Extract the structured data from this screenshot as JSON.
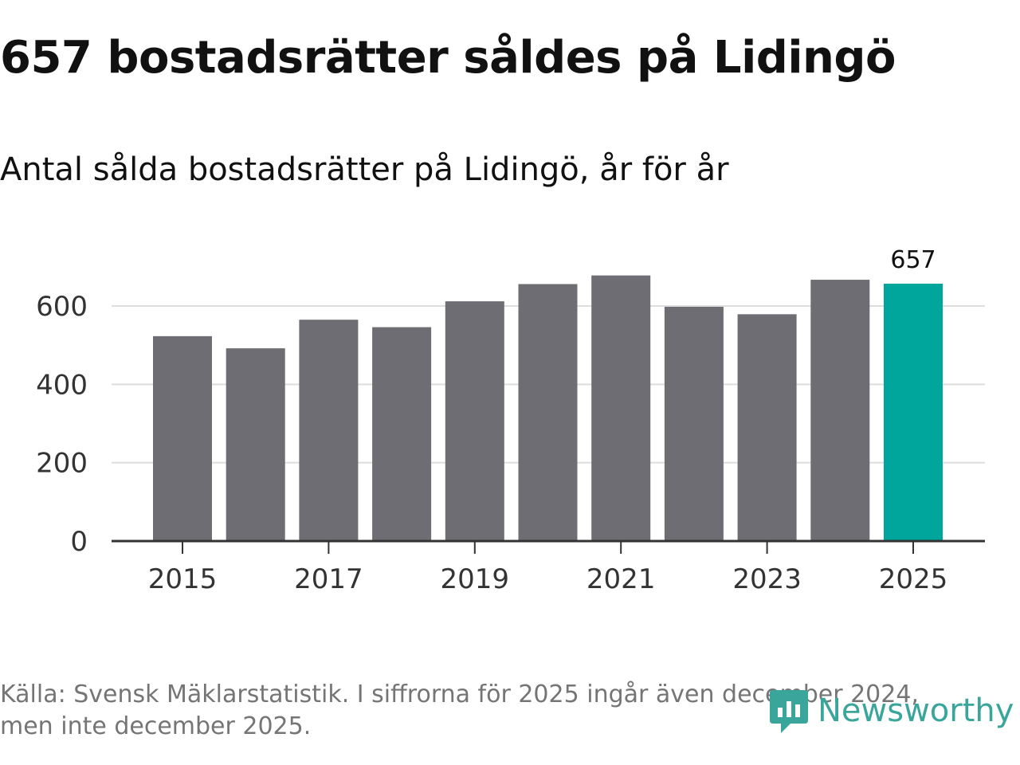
{
  "header": {
    "title": "657 bostadsrätter såldes på Lidingö",
    "subtitle": "Antal sålda bostadsrätter på Lidingö, år för år"
  },
  "footer": {
    "source_line1": "Källa: Svensk Mäklarstatistik. I siffrorna för 2025 ingår även december 2024,",
    "source_line2": "men inte december 2025.",
    "logo_text": "Newsworthy"
  },
  "colors": {
    "bar": "#6e6d73",
    "highlight": "#00a59b",
    "grid": "#dddddd",
    "axis": "#333333",
    "logo": "#3aa59b"
  },
  "chart_data": {
    "type": "bar",
    "title": "Antal sålda bostadsrätter på Lidingö, år för år",
    "categories": [
      "2015",
      "2016",
      "2017",
      "2018",
      "2019",
      "2020",
      "2021",
      "2022",
      "2023",
      "2024",
      "2025"
    ],
    "values": [
      523,
      492,
      565,
      546,
      612,
      656,
      678,
      598,
      579,
      667,
      657
    ],
    "highlight_index": 10,
    "value_label": "657",
    "ylim": [
      0,
      700
    ],
    "yticks": [
      0,
      200,
      400,
      600
    ],
    "xtick_labels": [
      "2015",
      "2017",
      "2019",
      "2021",
      "2023",
      "2025"
    ],
    "xlabel": "",
    "ylabel": "",
    "grid": true,
    "legend": "none"
  }
}
